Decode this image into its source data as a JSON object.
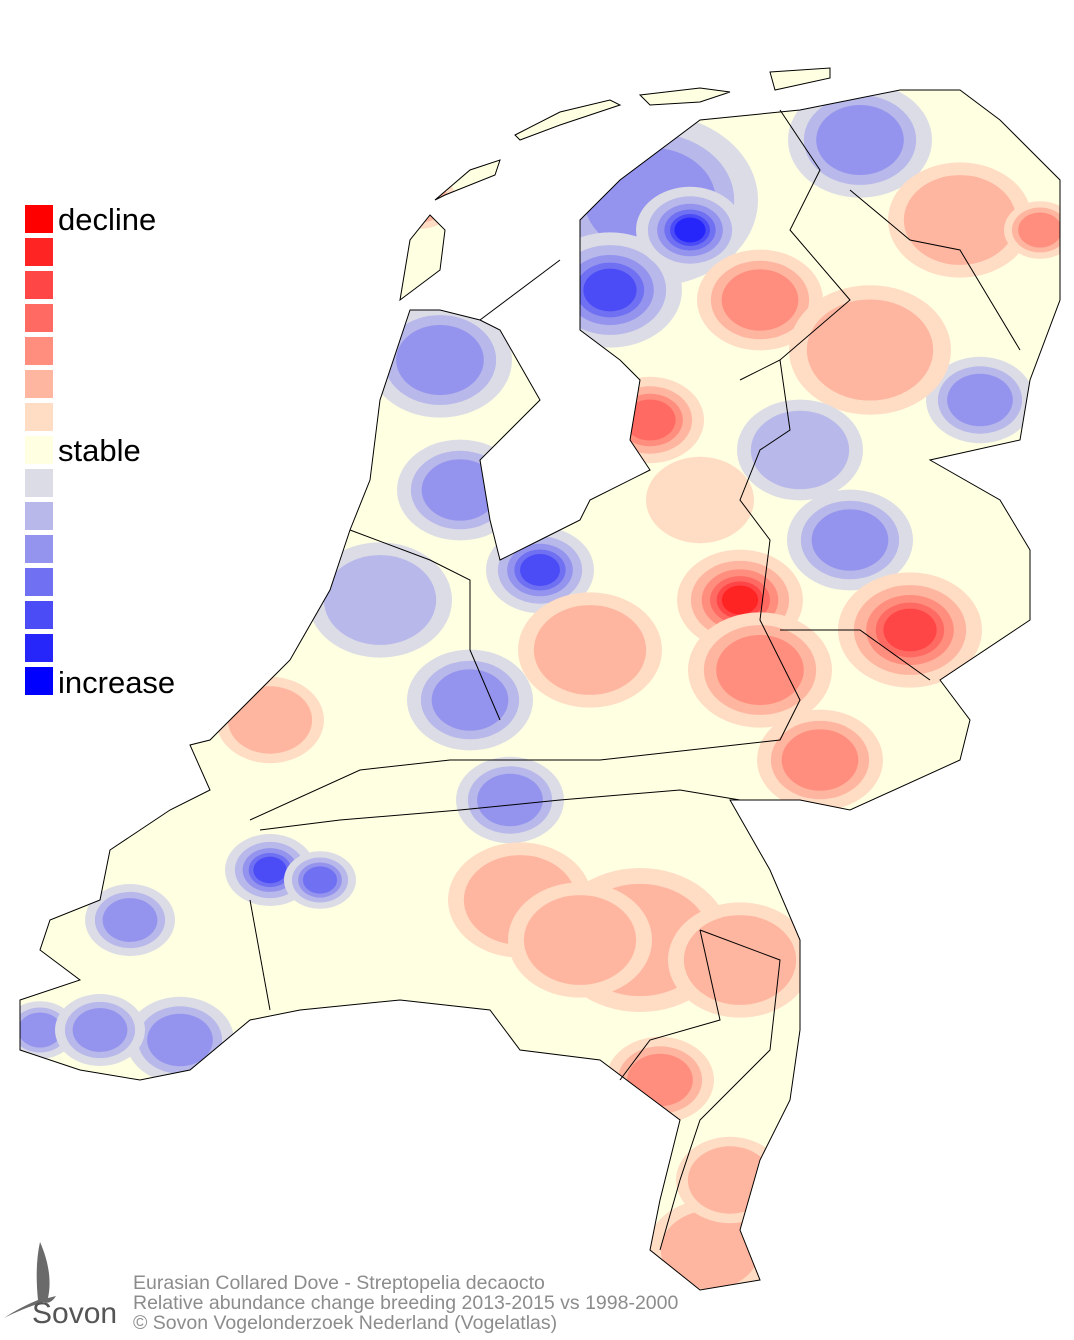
{
  "legend": {
    "labels": {
      "decline": "decline",
      "stable": "stable",
      "increase": "increase"
    },
    "colors": [
      "#ff0000",
      "#ff2424",
      "#ff4646",
      "#ff6a62",
      "#ff8e7e",
      "#ffb6a0",
      "#ffdcc4",
      "#ffffe2",
      "#dcdce6",
      "#b8b8ea",
      "#9494ee",
      "#7070f2",
      "#4c4cf6",
      "#2626fa",
      "#0000ff"
    ]
  },
  "footer": {
    "line1": "Eurasian Collared Dove - Streptopelia decaocto",
    "line2": "Relative abundance change breeding 2013-2015 vs 1998-2000",
    "line3": "© Sovon Vogelonderzoek Nederland (Vogelatlas)"
  },
  "logo": {
    "text": "Sovon"
  },
  "map": {
    "region": "Netherlands",
    "base_color": "#ffffe2",
    "border_color": "#000000"
  }
}
